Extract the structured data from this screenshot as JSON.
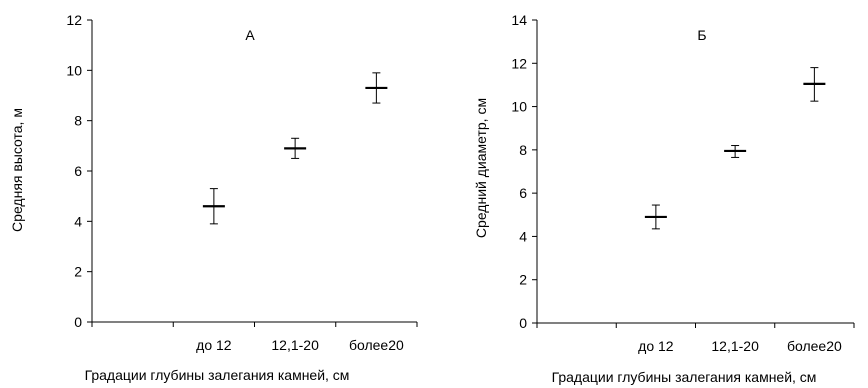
{
  "chart_data": [
    {
      "type": "scatter",
      "panel_label": "А",
      "xlabel": "Градации глубины залегания камней, см",
      "ylabel": "Средняя высота, м",
      "categories": [
        "до 12",
        "12,1-20",
        "более20"
      ],
      "values": [
        4.6,
        6.9,
        9.3
      ],
      "error_low": [
        3.9,
        6.5,
        8.7
      ],
      "error_high": [
        5.3,
        7.3,
        9.9
      ],
      "ylim": [
        0,
        12
      ],
      "yticks": [
        "0",
        "2",
        "4",
        "6",
        "8",
        "10",
        "12"
      ],
      "ytick_values": [
        0,
        2,
        4,
        6,
        8,
        10,
        12
      ],
      "grid": false,
      "marker": "horizontal-dash with vertical error bar",
      "color": "#000000"
    },
    {
      "type": "scatter",
      "panel_label": "Б",
      "xlabel": "Градации глубины залегания камней, см",
      "ylabel": "Средний диаметр, см",
      "categories": [
        "до 12",
        "12,1-20",
        "более20"
      ],
      "values": [
        4.9,
        7.95,
        11.05
      ],
      "error_low": [
        4.35,
        7.65,
        10.25
      ],
      "error_high": [
        5.45,
        8.2,
        11.8
      ],
      "ylim": [
        0,
        14
      ],
      "yticks": [
        "0",
        "2",
        "4",
        "6",
        "8",
        "10",
        "12",
        "14"
      ],
      "ytick_values": [
        0,
        2,
        4,
        6,
        8,
        10,
        12,
        14
      ],
      "grid": false,
      "marker": "horizontal-dash with vertical error bar",
      "color": "#000000"
    }
  ]
}
